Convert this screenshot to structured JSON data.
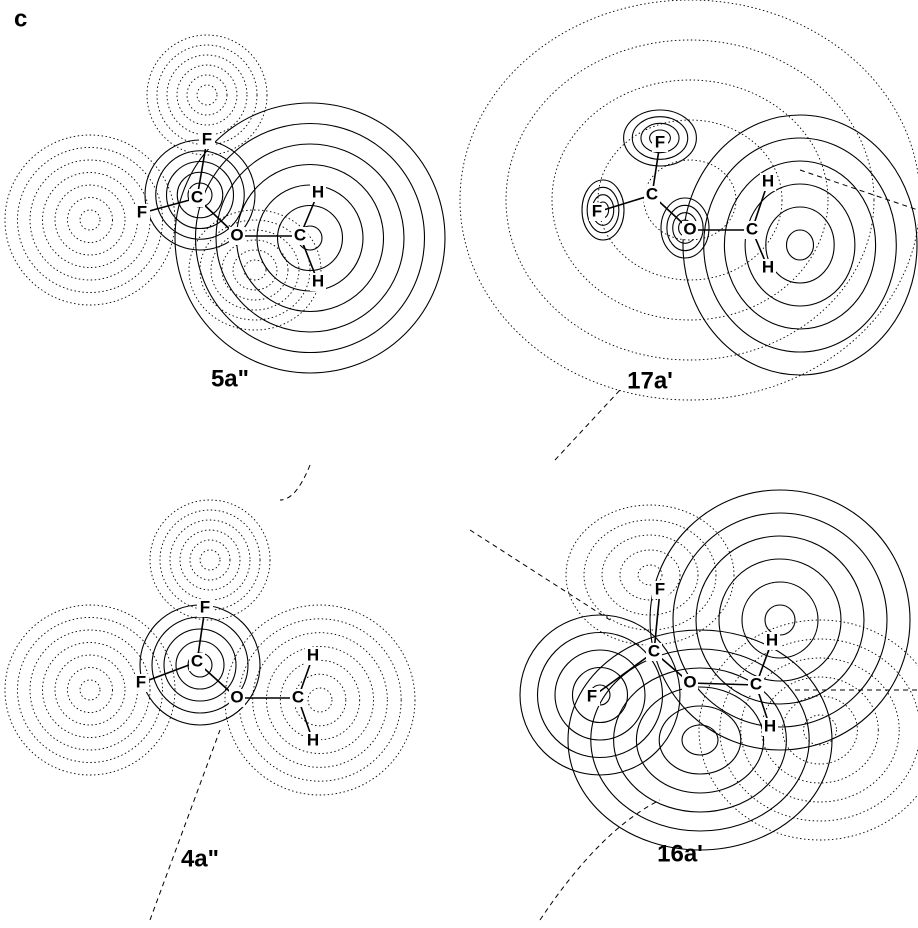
{
  "panel_label": "c",
  "panels": [
    {
      "label": "5a\"",
      "atoms": [
        "F",
        "F",
        "C",
        "O",
        "C",
        "H",
        "H"
      ]
    },
    {
      "label": "17a'",
      "atoms": [
        "F",
        "F",
        "C",
        "O",
        "C",
        "H",
        "H"
      ]
    },
    {
      "label": "4a\"",
      "atoms": [
        "F",
        "F",
        "C",
        "O",
        "C",
        "H",
        "H"
      ]
    },
    {
      "label": "16a'",
      "atoms": [
        "F",
        "F",
        "C",
        "O",
        "C",
        "H",
        "H"
      ]
    }
  ]
}
